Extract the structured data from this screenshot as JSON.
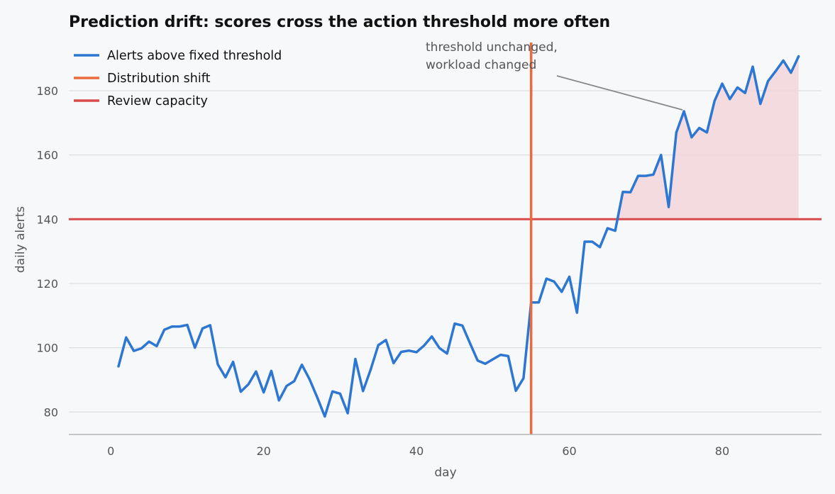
{
  "chart_data": {
    "type": "line",
    "title": "Prediction drift: scores cross the action threshold more often",
    "xlabel": "day",
    "ylabel": "daily alerts",
    "xlim": [
      -5.5,
      93
    ],
    "ylim": [
      73,
      195
    ],
    "xticks": [
      0,
      20,
      40,
      60,
      80
    ],
    "yticks": [
      80,
      100,
      120,
      140,
      160,
      180
    ],
    "grid": "horizontal",
    "legend_position": "top-left",
    "series": [
      {
        "name": "Alerts above fixed threshold",
        "color": "#2d77d3",
        "x": [
          1,
          2,
          3,
          4,
          5,
          6,
          7,
          8,
          9,
          10,
          11,
          12,
          13,
          14,
          15,
          16,
          17,
          18,
          19,
          20,
          21,
          22,
          23,
          24,
          25,
          26,
          27,
          28,
          29,
          30,
          31,
          32,
          33,
          34,
          35,
          36,
          37,
          38,
          39,
          40,
          41,
          42,
          43,
          44,
          45,
          46,
          47,
          48,
          49,
          50,
          51,
          52,
          53,
          54,
          55,
          56,
          57,
          58,
          59,
          60,
          61,
          62,
          63,
          64,
          65,
          66,
          67,
          68,
          69,
          70,
          71,
          72,
          73,
          74,
          75,
          76,
          77,
          78,
          79,
          80,
          81,
          82,
          83,
          84,
          85,
          86,
          87,
          88,
          89,
          90
        ],
        "y": [
          94.2,
          103.2,
          99.0,
          99.8,
          101.9,
          100.5,
          105.6,
          106.6,
          106.6,
          107.1,
          100.0,
          106.0,
          107.0,
          94.8,
          90.8,
          95.6,
          86.3,
          88.6,
          92.6,
          86.1,
          92.8,
          83.6,
          88.1,
          89.6,
          94.7,
          90.2,
          84.6,
          78.6,
          86.4,
          85.7,
          79.6,
          96.5,
          86.5,
          93.2,
          100.8,
          102.4,
          95.2,
          98.7,
          99.1,
          98.6,
          100.7,
          103.5,
          99.9,
          98.2,
          107.5,
          106.9,
          101.4,
          96.0,
          95.0,
          96.4,
          97.8,
          97.4,
          86.6,
          90.5,
          114.1,
          114.1,
          121.5,
          120.6,
          117.4,
          122.1,
          110.9,
          133.0,
          133.0,
          131.3,
          137.2,
          136.4,
          148.5,
          148.4,
          153.5,
          153.5,
          153.9,
          160.0,
          143.8,
          167.0,
          173.6,
          165.5,
          168.4,
          167.0,
          176.8,
          182.2,
          177.4,
          181.0,
          179.3,
          187.5,
          175.9,
          183.0,
          186.1,
          189.4,
          185.6,
          190.7
        ]
      }
    ],
    "vertical_markers": [
      {
        "name": "Distribution shift",
        "x": 55,
        "color": "#ea6a3e"
      }
    ],
    "horizontal_markers": [
      {
        "name": "Review capacity",
        "y": 140,
        "color": "#d94b4b"
      }
    ],
    "shaded_region": {
      "from": "Review capacity",
      "above": true,
      "color": "#f3d6d9"
    },
    "annotations": [
      {
        "lines": [
          "threshold unchanged,",
          "workload changed"
        ],
        "points_to": {
          "x": 75,
          "y": 173.6
        }
      }
    ]
  },
  "colors": {
    "background": "#f7f8fa",
    "grid": "#dcdedf",
    "axis": "#b5b5b5",
    "annotation_arrow": "#888888"
  }
}
